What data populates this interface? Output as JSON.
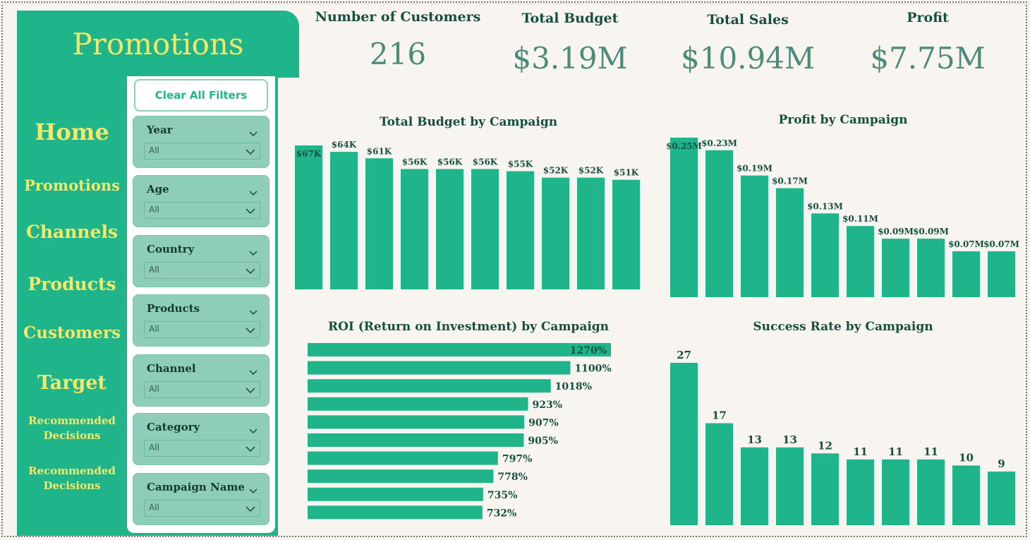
{
  "page_title": "Promotions",
  "nav": {
    "items": [
      "Home",
      "Promotions",
      "Channels",
      "Products",
      "Customers",
      "Target"
    ],
    "decision_items": [
      "Recommended\nDecisions",
      "Recommended\nDecisions"
    ]
  },
  "filters": {
    "clear_label": "Clear All Filters",
    "slicers": [
      {
        "label": "Year",
        "value": "All"
      },
      {
        "label": "Age",
        "value": "All"
      },
      {
        "label": "Country",
        "value": "All"
      },
      {
        "label": "Products",
        "value": "All"
      },
      {
        "label": "Channel",
        "value": "All"
      },
      {
        "label": "Category",
        "value": "All"
      },
      {
        "label": "Campaign Name",
        "value": "All"
      }
    ]
  },
  "kpis": [
    {
      "label": "Number of Customers",
      "value": "216"
    },
    {
      "label": "Total Budget",
      "value": "$3.19M"
    },
    {
      "label": "Total Sales",
      "value": "$10.94M"
    },
    {
      "label": "Profit",
      "value": "$7.75M"
    }
  ],
  "colors": {
    "accent": "#20b48a",
    "title_text": "#f3e86a",
    "slicer_bg": "#8ecdb8",
    "background": "#f8f4f0",
    "label_text": "#16503f"
  },
  "chart_data": [
    {
      "type": "bar",
      "title": "Total Budget by Campaign",
      "values": [
        67,
        64,
        61,
        56,
        56,
        56,
        55,
        52,
        52,
        51
      ],
      "labels": [
        "$67K",
        "$64K",
        "$61K",
        "$56K",
        "$56K",
        "$56K",
        "$55K",
        "$52K",
        "$52K",
        "$51K"
      ],
      "unit": "$K"
    },
    {
      "type": "bar",
      "title": "Profit by Campaign",
      "values": [
        0.25,
        0.23,
        0.19,
        0.17,
        0.13,
        0.11,
        0.09,
        0.09,
        0.07,
        0.07
      ],
      "labels": [
        "$0.25M",
        "$0.23M",
        "$0.19M",
        "$0.17M",
        "$0.13M",
        "$0.11M",
        "$0.09M",
        "$0.09M",
        "$0.07M",
        "$0.07M"
      ],
      "unit": "$M"
    },
    {
      "type": "bar",
      "orientation": "horizontal",
      "title": "ROI (Return on Investment) by Campaign",
      "values": [
        1270,
        1100,
        1018,
        923,
        907,
        905,
        797,
        778,
        735,
        732
      ],
      "labels": [
        "1270%",
        "1100%",
        "1018%",
        "923%",
        "907%",
        "905%",
        "797%",
        "778%",
        "735%",
        "732%"
      ],
      "unit": "%"
    },
    {
      "type": "bar",
      "title": "Success Rate by Campaign",
      "values": [
        27,
        17,
        13,
        13,
        12,
        11,
        11,
        11,
        10,
        9
      ],
      "labels": [
        "27",
        "17",
        "13",
        "13",
        "12",
        "11",
        "11",
        "11",
        "10",
        "9"
      ]
    }
  ]
}
